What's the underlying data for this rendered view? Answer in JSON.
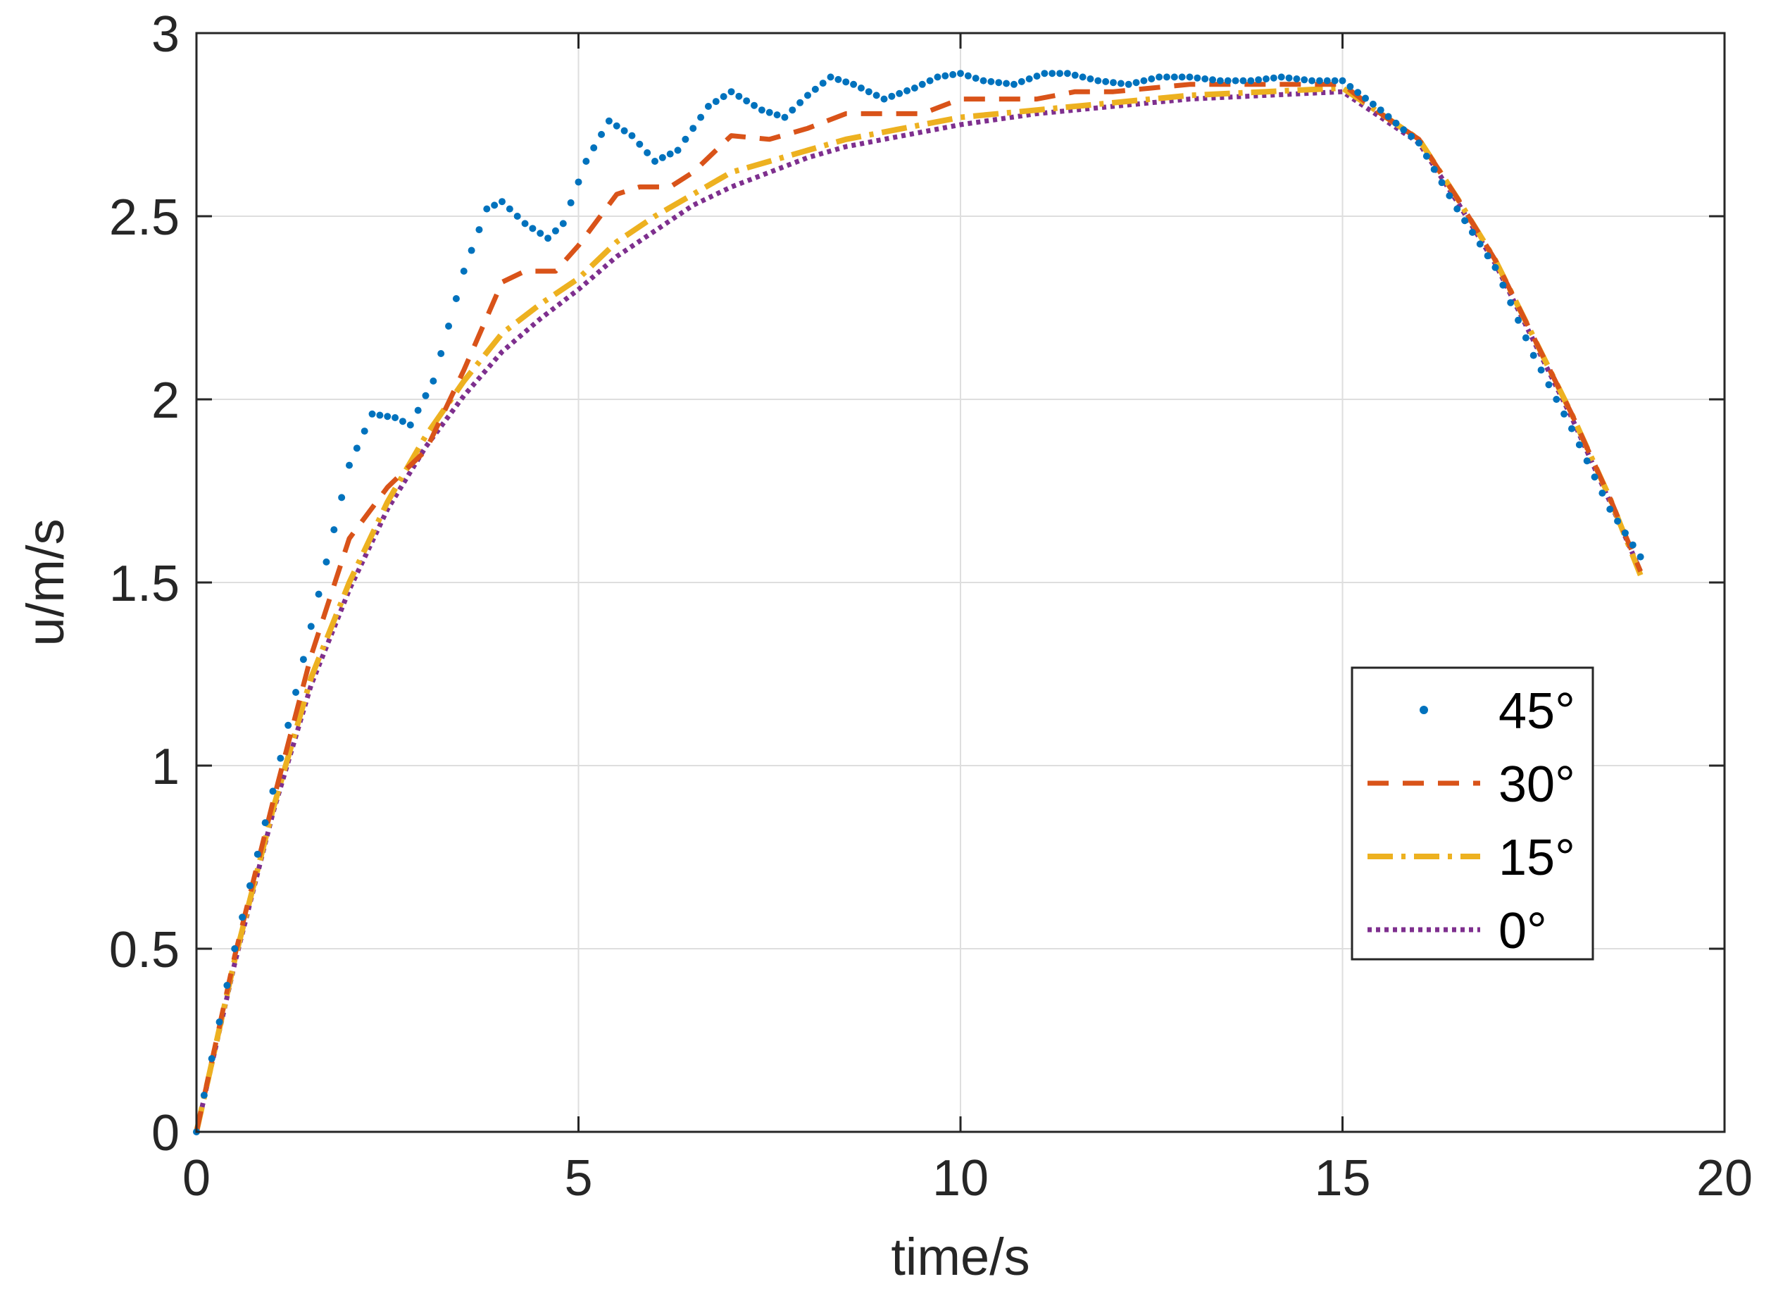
{
  "chart_data": {
    "type": "line",
    "title": "",
    "xlabel": "time/s",
    "ylabel": "u/m/s",
    "xlim": [
      0,
      20
    ],
    "ylim": [
      0,
      3
    ],
    "xticks": [
      0,
      5,
      10,
      15,
      20
    ],
    "yticks": [
      0,
      0.5,
      1,
      1.5,
      2,
      2.5,
      3
    ],
    "xtick_labels": [
      "0",
      "5",
      "10",
      "15",
      "20"
    ],
    "ytick_labels": [
      "0",
      "0.5",
      "1",
      "1.5",
      "2",
      "2.5",
      "3"
    ],
    "grid": true,
    "legend_position": "lower-right",
    "series": [
      {
        "name": "45°",
        "style": "dotted-markers",
        "color": "#0072BD",
        "x": [
          0,
          0.5,
          1,
          1.5,
          2,
          2.3,
          2.6,
          2.8,
          3.1,
          3.5,
          3.8,
          4,
          4.3,
          4.6,
          4.8,
          5.1,
          5.4,
          5.7,
          6,
          6.3,
          6.7,
          7,
          7.4,
          7.7,
          8,
          8.3,
          8.6,
          9,
          9.4,
          9.7,
          10,
          10.3,
          10.7,
          11.1,
          11.4,
          11.8,
          12.2,
          12.6,
          13,
          13.4,
          13.8,
          14.2,
          14.6,
          15,
          15.5,
          16,
          16.5,
          17,
          17.5,
          18,
          18.5,
          18.9
        ],
        "values": [
          0,
          0.5,
          0.93,
          1.38,
          1.82,
          1.96,
          1.95,
          1.93,
          2.05,
          2.35,
          2.52,
          2.54,
          2.48,
          2.44,
          2.48,
          2.65,
          2.76,
          2.72,
          2.65,
          2.68,
          2.8,
          2.84,
          2.79,
          2.77,
          2.83,
          2.88,
          2.86,
          2.82,
          2.85,
          2.88,
          2.89,
          2.87,
          2.86,
          2.89,
          2.89,
          2.87,
          2.86,
          2.88,
          2.88,
          2.87,
          2.87,
          2.88,
          2.87,
          2.87,
          2.79,
          2.7,
          2.52,
          2.36,
          2.12,
          1.92,
          1.7,
          1.57
        ]
      },
      {
        "name": "30°",
        "style": "dashed",
        "color": "#D95319",
        "x": [
          0,
          0.5,
          1,
          1.5,
          2,
          2.5,
          3,
          3.5,
          4,
          4.3,
          4.7,
          5,
          5.5,
          5.8,
          6.2,
          6.5,
          7,
          7.5,
          8,
          8.5,
          9,
          9.5,
          10,
          10.5,
          11,
          11.5,
          12,
          12.5,
          13,
          13.5,
          14,
          14.5,
          15,
          15.5,
          16,
          16.5,
          17,
          17.5,
          18,
          18.5,
          18.9
        ],
        "values": [
          0,
          0.48,
          0.9,
          1.3,
          1.62,
          1.76,
          1.86,
          2.08,
          2.32,
          2.35,
          2.35,
          2.42,
          2.56,
          2.58,
          2.58,
          2.62,
          2.72,
          2.71,
          2.74,
          2.78,
          2.78,
          2.78,
          2.82,
          2.82,
          2.82,
          2.84,
          2.84,
          2.85,
          2.86,
          2.86,
          2.86,
          2.86,
          2.86,
          2.78,
          2.71,
          2.55,
          2.38,
          2.17,
          1.96,
          1.73,
          1.53
        ]
      },
      {
        "name": "15°",
        "style": "dash-dot",
        "color": "#EDB120",
        "x": [
          0,
          0.5,
          1,
          1.5,
          2,
          2.5,
          3,
          3.5,
          4,
          4.5,
          5,
          5.5,
          6,
          6.5,
          7,
          7.5,
          8,
          8.5,
          9,
          9.5,
          10,
          11,
          12,
          13,
          14,
          15,
          15.5,
          16,
          16.5,
          17,
          17.5,
          18,
          18.5,
          18.9
        ],
        "values": [
          0,
          0.47,
          0.88,
          1.24,
          1.5,
          1.72,
          1.9,
          2.05,
          2.18,
          2.26,
          2.33,
          2.43,
          2.5,
          2.56,
          2.62,
          2.65,
          2.68,
          2.71,
          2.73,
          2.75,
          2.77,
          2.79,
          2.81,
          2.83,
          2.84,
          2.85,
          2.78,
          2.71,
          2.55,
          2.38,
          2.17,
          1.96,
          1.73,
          1.52
        ]
      },
      {
        "name": "0°",
        "style": "dotted",
        "color": "#7E2F8E",
        "x": [
          0,
          0.5,
          1,
          1.5,
          2,
          2.5,
          3,
          3.5,
          4,
          4.5,
          5,
          5.5,
          6,
          6.5,
          7,
          7.5,
          8,
          8.5,
          9,
          9.5,
          10,
          11,
          12,
          13,
          14,
          15,
          15.5,
          16,
          16.5,
          17,
          17.5,
          18,
          18.5,
          18.9
        ],
        "values": [
          0,
          0.46,
          0.87,
          1.22,
          1.48,
          1.7,
          1.87,
          2.01,
          2.13,
          2.22,
          2.3,
          2.39,
          2.46,
          2.53,
          2.58,
          2.62,
          2.66,
          2.69,
          2.71,
          2.73,
          2.75,
          2.78,
          2.8,
          2.82,
          2.83,
          2.84,
          2.77,
          2.7,
          2.54,
          2.37,
          2.16,
          1.95,
          1.72,
          1.53
        ]
      }
    ]
  }
}
